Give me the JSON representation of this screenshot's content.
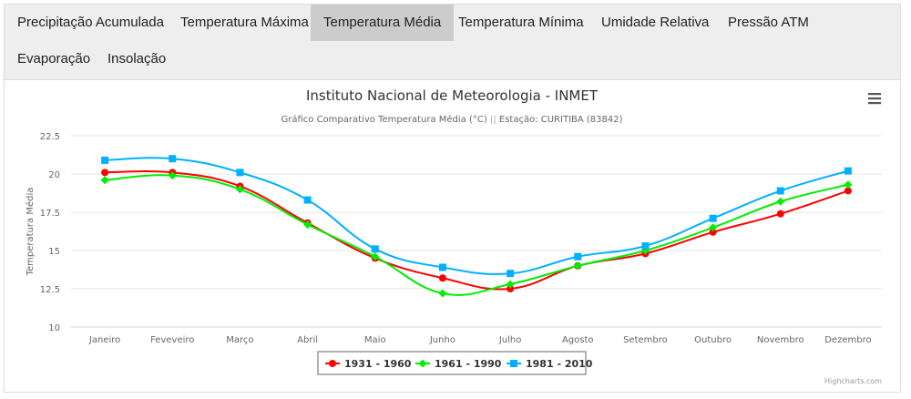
{
  "tabs": [
    {
      "label": "Precipitação Acumulada",
      "active": false
    },
    {
      "label": "Temperatura Máxima",
      "active": false
    },
    {
      "label": "Temperatura Média",
      "active": true
    },
    {
      "label": "Temperatura Mínima",
      "active": false
    },
    {
      "label": "Umidade Relativa",
      "active": false
    },
    {
      "label": "Pressão ATM",
      "active": false
    },
    {
      "label": "Evaporação",
      "active": false
    },
    {
      "label": "Insolação",
      "active": false
    }
  ],
  "credits": "Highcharts.com",
  "menu_icon": "hamburger-menu-icon",
  "chart_data": {
    "type": "line",
    "title": "Instituto Nacional de Meteorologia - INMET",
    "subtitle_main": "Gráfico Comparativo Temperatura Média (°C)",
    "subtitle_sep": "||",
    "subtitle_station": "Estação: CURITIBA (83842)",
    "ylabel": "Temperatura Média",
    "ylim": [
      10,
      22.5
    ],
    "yticks": [
      "10",
      "12.5",
      "15",
      "17.5",
      "20",
      "22.5"
    ],
    "grid": true,
    "legend_placement": "bottom",
    "categories": [
      "Janeiro",
      "Feveveiro",
      "Março",
      "Abril",
      "Maio",
      "Junho",
      "Julho",
      "Agosto",
      "Setembro",
      "Outubro",
      "Novembro",
      "Dezembro"
    ],
    "series": [
      {
        "name": "1931 - 1960",
        "color": "#ff0000",
        "marker": "circle",
        "values": [
          20.1,
          20.1,
          19.2,
          16.8,
          14.5,
          13.2,
          12.5,
          14.0,
          14.8,
          16.2,
          17.4,
          18.9
        ]
      },
      {
        "name": "1961 - 1990",
        "color": "#00ee00",
        "marker": "diamond",
        "values": [
          19.6,
          19.9,
          19.0,
          16.7,
          14.6,
          12.2,
          12.8,
          14.0,
          15.0,
          16.5,
          18.2,
          19.3
        ]
      },
      {
        "name": "1981 - 2010",
        "color": "#00b0ff",
        "marker": "square",
        "values": [
          20.9,
          21.0,
          20.1,
          18.3,
          15.1,
          13.9,
          13.5,
          14.6,
          15.3,
          17.1,
          18.9,
          20.2
        ]
      }
    ]
  }
}
